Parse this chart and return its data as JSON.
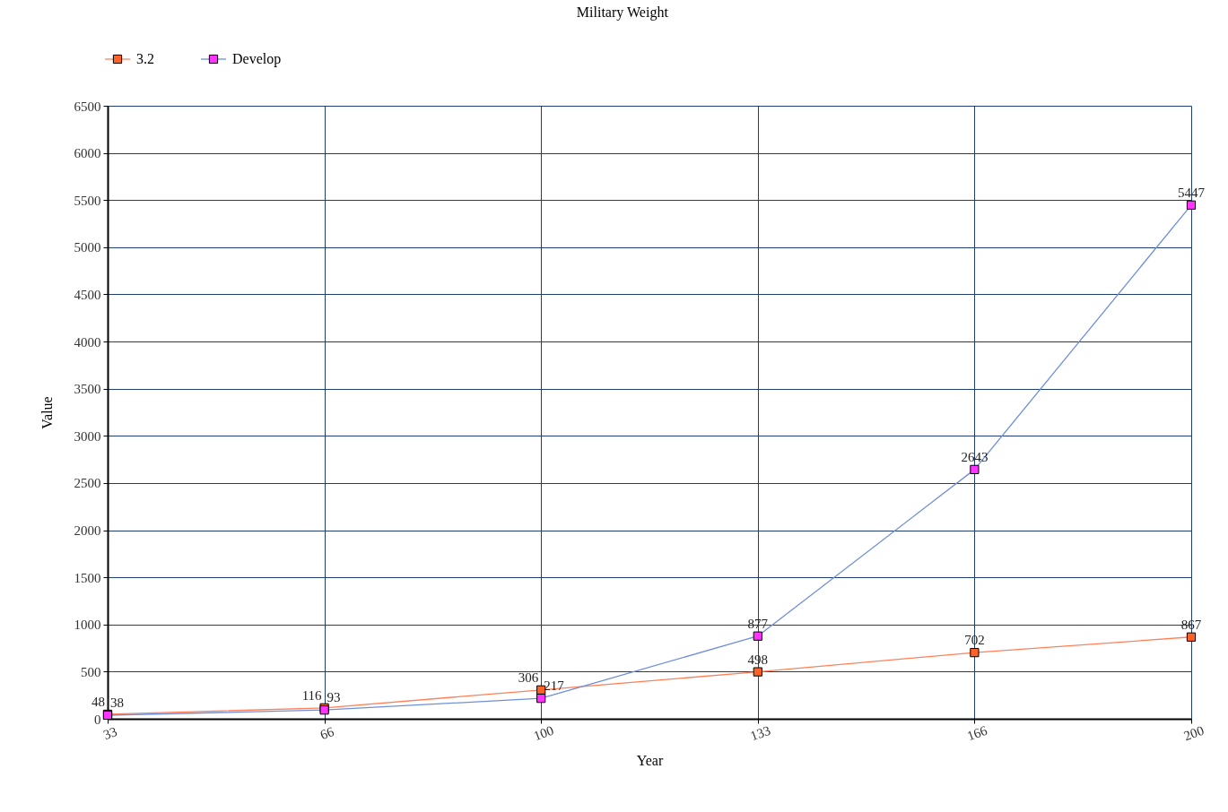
{
  "chart_data": {
    "type": "line",
    "title": "Military Weight",
    "xlabel": "Year",
    "ylabel": "Value",
    "categories": [
      "33",
      "66",
      "100",
      "133",
      "166",
      "200"
    ],
    "series": [
      {
        "name": "3.2",
        "color": "#ff8058",
        "colors": [
          "#ff6126",
          "#ff6126",
          "#ff6126",
          "#ff6126",
          "#ff6126",
          "#ff6126"
        ],
        "values": [
          48,
          116,
          306,
          498,
          702,
          867
        ]
      },
      {
        "name": "Develop",
        "color": "#6f8edc",
        "colors": [
          "#ff33ff",
          "#ff33ff",
          "#ff33ff",
          "#ff33ff",
          "#ff33ff",
          "#ff33ff"
        ],
        "values": [
          38,
          93,
          217,
          877,
          2643,
          5447
        ]
      }
    ],
    "ylim": [
      0,
      6500
    ],
    "yticks": [
      0,
      500,
      1000,
      1500,
      2000,
      2500,
      3000,
      3500,
      4000,
      4500,
      5000,
      5500,
      6000,
      6500
    ],
    "grid": true,
    "legend": "top left",
    "marker": "square",
    "line_style": "solid",
    "data_labels": true
  }
}
